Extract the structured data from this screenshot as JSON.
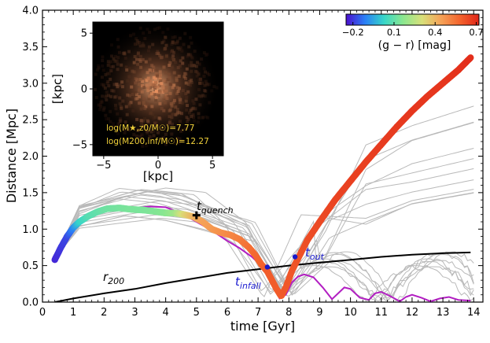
{
  "chart_data": {
    "type": "line",
    "xlabel": "time [Gyr]",
    "ylabel": "Distance [Mpc]",
    "xlim": [
      0,
      14.3
    ],
    "ylim": [
      0,
      4.0
    ],
    "x_ticks": [
      0,
      1,
      2,
      3,
      4,
      5,
      6,
      7,
      8,
      9,
      10,
      11,
      12,
      13,
      14
    ],
    "y_ticks": [
      0.0,
      0.5,
      1.0,
      1.5,
      2.0,
      2.5,
      3.0,
      3.5,
      4.0
    ],
    "x_tick_labels": [
      "0",
      "1",
      "2",
      "3",
      "4",
      "5",
      "6",
      "7",
      "8",
      "9",
      "10",
      "11",
      "12",
      "13",
      "14"
    ],
    "y_tick_labels": [
      "0.0",
      "0.5",
      "1.0",
      "1.5",
      "2.0",
      "2.5",
      "3.0",
      "3.5",
      "4.0"
    ],
    "colorbar": {
      "label": "(g − r) [mag]",
      "min": -0.25,
      "max": 0.72,
      "ticks": [
        -0.2,
        0.1,
        0.4,
        0.7
      ],
      "tick_labels": [
        "−0.2",
        "0.1",
        "0.4",
        "0.7"
      ],
      "colors": [
        "#4b0fcf",
        "#2a80f6",
        "#37d6c8",
        "#8be78f",
        "#d8e07a",
        "#f5a257",
        "#f4642d",
        "#e02518"
      ]
    },
    "series": [
      {
        "name": "galaxy orbit (colored by g−r)",
        "x": [
          0.4,
          0.6,
          0.8,
          1.0,
          1.2,
          1.5,
          1.8,
          2.1,
          2.5,
          2.9,
          3.3,
          3.7,
          4.0,
          4.3,
          4.6,
          4.9,
          5.2,
          5.5,
          5.8,
          6.1,
          6.4,
          6.7,
          6.9,
          7.1,
          7.3,
          7.45,
          7.6,
          7.75,
          7.9,
          8.1,
          8.3,
          8.6,
          9.0,
          9.5,
          10.0,
          10.5,
          11.0,
          11.5,
          12.0,
          12.5,
          13.0,
          13.5,
          13.9
        ],
        "y": [
          0.58,
          0.75,
          0.9,
          1.02,
          1.1,
          1.18,
          1.24,
          1.28,
          1.29,
          1.27,
          1.26,
          1.24,
          1.22,
          1.22,
          1.2,
          1.17,
          1.1,
          1.0,
          0.95,
          0.92,
          0.86,
          0.75,
          0.65,
          0.52,
          0.42,
          0.3,
          0.18,
          0.08,
          0.2,
          0.43,
          0.6,
          0.85,
          1.1,
          1.4,
          1.66,
          1.92,
          2.16,
          2.4,
          2.62,
          2.82,
          3.0,
          3.18,
          3.35
        ],
        "g_r": [
          -0.22,
          -0.2,
          -0.18,
          -0.1,
          0.02,
          0.08,
          0.1,
          0.12,
          0.13,
          0.14,
          0.14,
          0.15,
          0.16,
          0.2,
          0.32,
          0.4,
          0.44,
          0.46,
          0.48,
          0.5,
          0.52,
          0.55,
          0.57,
          0.58,
          0.6,
          0.6,
          0.6,
          0.6,
          0.61,
          0.61,
          0.62,
          0.63,
          0.64,
          0.65,
          0.66,
          0.66,
          0.67,
          0.67,
          0.68,
          0.68,
          0.68,
          0.69,
          0.7
        ]
      },
      {
        "name": "magenta orbit",
        "color": "#b21ec2",
        "x": [
          0.4,
          0.8,
          1.2,
          1.6,
          2.0,
          2.5,
          3.0,
          3.5,
          4.0,
          4.5,
          5.0,
          5.5,
          6.0,
          6.4,
          6.8,
          7.1,
          7.3,
          7.5,
          7.7,
          7.9,
          8.1,
          8.3,
          8.5,
          8.8,
          9.1,
          9.4,
          9.6,
          9.8,
          10.0,
          10.3,
          10.6,
          10.8,
          11.0,
          11.3,
          11.6,
          11.8,
          12.0,
          12.3,
          12.6,
          12.9,
          13.2,
          13.5,
          13.9
        ],
        "y": [
          0.6,
          0.9,
          1.08,
          1.18,
          1.24,
          1.28,
          1.29,
          1.31,
          1.3,
          1.22,
          1.1,
          0.98,
          0.84,
          0.74,
          0.62,
          0.5,
          0.38,
          0.22,
          0.05,
          0.1,
          0.27,
          0.35,
          0.38,
          0.34,
          0.2,
          0.04,
          0.12,
          0.2,
          0.18,
          0.06,
          0.03,
          0.12,
          0.14,
          0.08,
          0.01,
          0.07,
          0.1,
          0.06,
          0.01,
          0.05,
          0.07,
          0.03,
          0.02
        ]
      },
      {
        "name": "r200",
        "color": "#000000",
        "x": [
          0.4,
          1,
          2,
          3,
          4,
          5,
          6,
          7,
          8,
          9,
          10,
          11,
          12,
          13,
          13.9
        ],
        "y": [
          0.0,
          0.05,
          0.12,
          0.18,
          0.26,
          0.33,
          0.4,
          0.45,
          0.5,
          0.54,
          0.58,
          0.62,
          0.65,
          0.67,
          0.68
        ]
      }
    ],
    "background_orbits_count": 18,
    "markers": [
      {
        "name": "t_quench",
        "x": 5.0,
        "y": 1.19,
        "symbol": "plus"
      },
      {
        "name": "t_infall",
        "x": 7.3,
        "y": 0.48,
        "symbol": "dot"
      },
      {
        "name": "t_out",
        "x": 8.2,
        "y": 0.62,
        "symbol": "dot"
      }
    ],
    "annotations": {
      "t_quench_base": "t",
      "t_quench_sub": "quench",
      "t_infall_base": "t",
      "t_infall_sub": "infall",
      "t_out_base": "t",
      "t_out_sub": "out",
      "r200_base": "r",
      "r200_sub": "200"
    },
    "inset": {
      "xlabel": "[kpc]",
      "ylabel": "[kpc]",
      "xlim": [
        -6,
        6
      ],
      "ylim": [
        -6,
        6
      ],
      "ticks": [
        -5,
        0,
        5
      ],
      "tick_labels": [
        "−5",
        "0",
        "5"
      ],
      "text_line1": "log(M★,z0/M☉)=7.77",
      "text_line2": "log(M200,inf/M☉)=12.27"
    }
  }
}
